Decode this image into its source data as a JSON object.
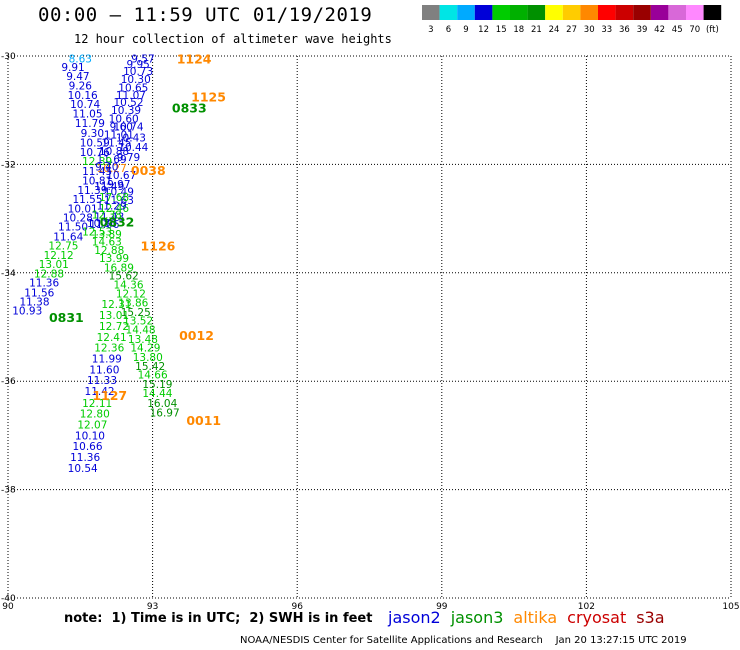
{
  "header": {
    "title": "00:00 – 11:59 UTC 01/19/2019",
    "subtitle": "12 hour collection of altimeter wave heights"
  },
  "colorbar": {
    "colors": [
      "#808080",
      "#00e5e5",
      "#00aaff",
      "#0000d8",
      "#00cc00",
      "#00b000",
      "#009000",
      "#ffff00",
      "#ffcc00",
      "#ff8800",
      "#ff0000",
      "#cc0000",
      "#990000",
      "#990099",
      "#d868d8",
      "#ff88ff",
      "#000000"
    ],
    "labels": [
      "3",
      "6",
      "9",
      "12",
      "15",
      "18",
      "21",
      "24",
      "27",
      "30",
      "33",
      "36",
      "39",
      "42",
      "45",
      "70",
      "(ft)"
    ]
  },
  "chart_data": {
    "type": "scatter",
    "xlim": [
      90,
      105
    ],
    "ylim": [
      -40,
      -30
    ],
    "x_ticks": [
      90,
      93,
      96,
      99,
      102,
      105
    ],
    "y_ticks": [
      -30,
      -32,
      -34,
      -36,
      -38,
      -40
    ],
    "grid": true,
    "points": [
      {
        "x": 92.8,
        "y": -30.05,
        "v": "9.57",
        "c": "#0000d8"
      },
      {
        "x": 92.7,
        "y": -30.15,
        "v": "9.95",
        "c": "#0000d8"
      },
      {
        "x": 92.7,
        "y": -30.28,
        "v": "10.73",
        "c": "#0000d8"
      },
      {
        "x": 92.65,
        "y": -30.42,
        "v": "10.30",
        "c": "#0000d8"
      },
      {
        "x": 92.6,
        "y": -30.58,
        "v": "10.65",
        "c": "#0000d8"
      },
      {
        "x": 92.55,
        "y": -30.72,
        "v": "11.07",
        "c": "#0000d8"
      },
      {
        "x": 92.5,
        "y": -30.85,
        "v": "10.52",
        "c": "#0000d8"
      },
      {
        "x": 92.45,
        "y": -31.0,
        "v": "10.39",
        "c": "#0000d8"
      },
      {
        "x": 92.4,
        "y": -31.15,
        "v": "10.60",
        "c": "#0000d8"
      },
      {
        "x": 92.35,
        "y": -31.3,
        "v": "9.60",
        "c": "#0000d8"
      },
      {
        "x": 92.3,
        "y": -31.45,
        "v": "11.01",
        "c": "#0000d8"
      },
      {
        "x": 92.25,
        "y": -31.6,
        "v": "11.45",
        "c": "#0000d8"
      },
      {
        "x": 92.2,
        "y": -31.75,
        "v": "10.88",
        "c": "#0000d8"
      },
      {
        "x": 92.15,
        "y": -31.9,
        "v": "11.69",
        "c": "#0000d8"
      },
      {
        "x": 92.15,
        "y": -32.07,
        "v": "10.27",
        "c": "#ff8800"
      },
      {
        "x": 92.35,
        "y": -32.2,
        "v": "10.67",
        "c": "#0000d8"
      },
      {
        "x": 92.3,
        "y": -32.36,
        "v": "9.97",
        "c": "#0000d8"
      },
      {
        "x": 92.3,
        "y": -32.5,
        "v": "10.49",
        "c": "#0000d8"
      },
      {
        "x": 92.3,
        "y": -32.66,
        "v": "11.63",
        "c": "#0000d8"
      },
      {
        "x": 92.2,
        "y": -32.8,
        "v": "12.46",
        "c": "#00cc00"
      },
      {
        "x": 92.1,
        "y": -32.96,
        "v": "11.43",
        "c": "#0000d8"
      },
      {
        "x": 92.0,
        "y": -33.1,
        "v": "11.06",
        "c": "#0000d8"
      },
      {
        "x": 92.05,
        "y": -33.28,
        "v": "13.89",
        "c": "#00cc00"
      },
      {
        "x": 92.05,
        "y": -33.42,
        "v": "14.63",
        "c": "#00cc00"
      },
      {
        "x": 92.1,
        "y": -33.58,
        "v": "12.88",
        "c": "#00cc00"
      },
      {
        "x": 92.2,
        "y": -33.73,
        "v": "13.99",
        "c": "#00cc00"
      },
      {
        "x": 92.3,
        "y": -33.9,
        "v": "16.89",
        "c": "#00cc00"
      },
      {
        "x": 92.4,
        "y": -34.05,
        "v": "15.62",
        "c": "#009000"
      },
      {
        "x": 92.5,
        "y": -34.22,
        "v": "14.36",
        "c": "#00cc00"
      },
      {
        "x": 92.55,
        "y": -34.38,
        "v": "12.12",
        "c": "#00cc00"
      },
      {
        "x": 92.6,
        "y": -34.55,
        "v": "13.86",
        "c": "#00cc00"
      },
      {
        "x": 92.65,
        "y": -34.72,
        "v": "15.25",
        "c": "#009000"
      },
      {
        "x": 92.7,
        "y": -34.88,
        "v": "13.52",
        "c": "#00cc00"
      },
      {
        "x": 92.75,
        "y": -35.05,
        "v": "14.48",
        "c": "#00cc00"
      },
      {
        "x": 92.8,
        "y": -35.22,
        "v": "13.48",
        "c": "#00cc00"
      },
      {
        "x": 92.85,
        "y": -35.38,
        "v": "14.29",
        "c": "#00cc00"
      },
      {
        "x": 92.9,
        "y": -35.55,
        "v": "13.80",
        "c": "#00cc00"
      },
      {
        "x": 92.95,
        "y": -35.72,
        "v": "15.42",
        "c": "#009000"
      },
      {
        "x": 93.0,
        "y": -35.88,
        "v": "14.66",
        "c": "#00cc00"
      },
      {
        "x": 93.1,
        "y": -36.05,
        "v": "15.19",
        "c": "#009000"
      },
      {
        "x": 93.1,
        "y": -36.22,
        "v": "14.44",
        "c": "#00cc00"
      },
      {
        "x": 93.2,
        "y": -36.4,
        "v": "16.04",
        "c": "#009000"
      },
      {
        "x": 93.25,
        "y": -36.58,
        "v": "16.97",
        "c": "#009000"
      },
      {
        "x": 91.5,
        "y": -30.05,
        "v": "8.63",
        "c": "#00aaff"
      },
      {
        "x": 91.35,
        "y": -30.2,
        "v": "9.91",
        "c": "#0000d8"
      },
      {
        "x": 91.45,
        "y": -30.37,
        "v": "9.47",
        "c": "#0000d8"
      },
      {
        "x": 91.5,
        "y": -30.54,
        "v": "9.26",
        "c": "#0000d8"
      },
      {
        "x": 91.55,
        "y": -30.72,
        "v": "10.16",
        "c": "#0000d8"
      },
      {
        "x": 91.6,
        "y": -30.89,
        "v": "10.74",
        "c": "#0000d8"
      },
      {
        "x": 91.65,
        "y": -31.06,
        "v": "11.05",
        "c": "#0000d8"
      },
      {
        "x": 91.7,
        "y": -31.24,
        "v": "11.79",
        "c": "#0000d8"
      },
      {
        "x": 91.75,
        "y": -31.42,
        "v": "9.30",
        "c": "#0000d8"
      },
      {
        "x": 91.8,
        "y": -31.6,
        "v": "10.59",
        "c": "#0000d8"
      },
      {
        "x": 91.8,
        "y": -31.77,
        "v": "10.76",
        "c": "#0000d8"
      },
      {
        "x": 91.85,
        "y": -31.94,
        "v": "12.39",
        "c": "#00cc00"
      },
      {
        "x": 91.85,
        "y": -32.12,
        "v": "11.45",
        "c": "#0000d8"
      },
      {
        "x": 91.85,
        "y": -32.3,
        "v": "10.81",
        "c": "#0000d8"
      },
      {
        "x": 91.75,
        "y": -32.47,
        "v": "11.39",
        "c": "#0000d8"
      },
      {
        "x": 91.65,
        "y": -32.64,
        "v": "11.55",
        "c": "#0000d8"
      },
      {
        "x": 91.55,
        "y": -32.81,
        "v": "10.01",
        "c": "#0000d8"
      },
      {
        "x": 91.45,
        "y": -32.98,
        "v": "10.28",
        "c": "#0000d8"
      },
      {
        "x": 91.35,
        "y": -33.15,
        "v": "11.50",
        "c": "#0000d8"
      },
      {
        "x": 91.25,
        "y": -33.33,
        "v": "11.64",
        "c": "#0000d8"
      },
      {
        "x": 91.15,
        "y": -33.5,
        "v": "12.75",
        "c": "#00cc00"
      },
      {
        "x": 91.05,
        "y": -33.67,
        "v": "12.12",
        "c": "#00cc00"
      },
      {
        "x": 90.95,
        "y": -33.84,
        "v": "13.01",
        "c": "#00cc00"
      },
      {
        "x": 90.85,
        "y": -34.01,
        "v": "12.88",
        "c": "#00cc00"
      },
      {
        "x": 90.75,
        "y": -34.18,
        "v": "11.36",
        "c": "#0000d8"
      },
      {
        "x": 90.65,
        "y": -34.36,
        "v": "11.56",
        "c": "#0000d8"
      },
      {
        "x": 90.55,
        "y": -34.53,
        "v": "11.38",
        "c": "#0000d8"
      },
      {
        "x": 90.4,
        "y": -34.7,
        "v": "10.93",
        "c": "#0000d8"
      },
      {
        "x": 92.25,
        "y": -34.58,
        "v": "12.31",
        "c": "#00cc00"
      },
      {
        "x": 92.2,
        "y": -34.78,
        "v": "13.01",
        "c": "#00cc00"
      },
      {
        "x": 92.2,
        "y": -34.98,
        "v": "12.72",
        "c": "#00cc00"
      },
      {
        "x": 92.15,
        "y": -35.18,
        "v": "12.41",
        "c": "#00cc00"
      },
      {
        "x": 92.1,
        "y": -35.38,
        "v": "12.36",
        "c": "#00cc00"
      },
      {
        "x": 92.05,
        "y": -35.58,
        "v": "11.99",
        "c": "#0000d8"
      },
      {
        "x": 92.0,
        "y": -35.78,
        "v": "11.60",
        "c": "#0000d8"
      },
      {
        "x": 91.95,
        "y": -35.98,
        "v": "11.33",
        "c": "#0000d8"
      },
      {
        "x": 91.9,
        "y": -36.18,
        "v": "11.42",
        "c": "#0000d8"
      },
      {
        "x": 91.85,
        "y": -36.4,
        "v": "12.11",
        "c": "#00cc00"
      },
      {
        "x": 91.8,
        "y": -36.6,
        "v": "12.80",
        "c": "#00cc00"
      },
      {
        "x": 91.75,
        "y": -36.8,
        "v": "12.07",
        "c": "#00cc00"
      },
      {
        "x": 91.7,
        "y": -37.0,
        "v": "10.10",
        "c": "#0000d8"
      },
      {
        "x": 91.65,
        "y": -37.2,
        "v": "10.66",
        "c": "#0000d8"
      },
      {
        "x": 91.6,
        "y": -37.4,
        "v": "11.36",
        "c": "#0000d8"
      },
      {
        "x": 91.55,
        "y": -37.6,
        "v": "10.54",
        "c": "#0000d8"
      },
      {
        "x": 92.2,
        "y": -32.6,
        "v": "17.68",
        "c": "#00cc00"
      },
      {
        "x": 92.15,
        "y": -32.76,
        "v": "11.29",
        "c": "#0000d8"
      },
      {
        "x": 92.05,
        "y": -32.92,
        "v": "12.38",
        "c": "#00cc00"
      },
      {
        "x": 91.95,
        "y": -33.08,
        "v": "10.80",
        "c": "#0000d8"
      },
      {
        "x": 91.85,
        "y": -33.24,
        "v": "12.53",
        "c": "#00cc00"
      },
      {
        "x": 92.5,
        "y": -31.3,
        "v": "10.74",
        "c": "#0000d8"
      },
      {
        "x": 92.55,
        "y": -31.5,
        "v": "10.43",
        "c": "#0000d8"
      },
      {
        "x": 92.6,
        "y": -31.68,
        "v": "10.44",
        "c": "#0000d8"
      },
      {
        "x": 92.5,
        "y": -31.86,
        "v": "9.79",
        "c": "#0000d8"
      },
      {
        "x": 92.05,
        "y": -32.04,
        "v": "9.40",
        "c": "#0000d8"
      },
      {
        "x": 92.1,
        "y": -32.4,
        "v": "11.49",
        "c": "#0000d8"
      }
    ],
    "time_labels": [
      {
        "x": 93.5,
        "y": -30.05,
        "t": "1124",
        "c": "#ff8800"
      },
      {
        "x": 93.8,
        "y": -30.75,
        "t": "1125",
        "c": "#ff8800"
      },
      {
        "x": 93.4,
        "y": -30.95,
        "t": "0833",
        "c": "#009000"
      },
      {
        "x": 92.55,
        "y": -32.1,
        "t": "0038",
        "c": "#ff8800"
      },
      {
        "x": 91.9,
        "y": -33.05,
        "t": "0832",
        "c": "#009000"
      },
      {
        "x": 92.75,
        "y": -33.5,
        "t": "1126",
        "c": "#ff8800"
      },
      {
        "x": 90.85,
        "y": -34.82,
        "t": "0831",
        "c": "#009000"
      },
      {
        "x": 93.55,
        "y": -35.15,
        "t": "0012",
        "c": "#ff8800"
      },
      {
        "x": 91.75,
        "y": -36.25,
        "t": "1127",
        "c": "#ff8800"
      },
      {
        "x": 93.7,
        "y": -36.72,
        "t": "0011",
        "c": "#ff8800"
      }
    ]
  },
  "note": "note:  1) Time is in UTC;  2) SWH is in feet",
  "legend": [
    {
      "name": "jason2",
      "color": "#0000d8"
    },
    {
      "name": "jason3",
      "color": "#009000"
    },
    {
      "name": "altika",
      "color": "#ff8800"
    },
    {
      "name": "cryosat",
      "color": "#cc0000"
    },
    {
      "name": "s3a",
      "color": "#990000"
    }
  ],
  "credit": "NOAA/NESDIS Center for Satellite Applications and Research    Jan 20 13:27:15 UTC 2019"
}
